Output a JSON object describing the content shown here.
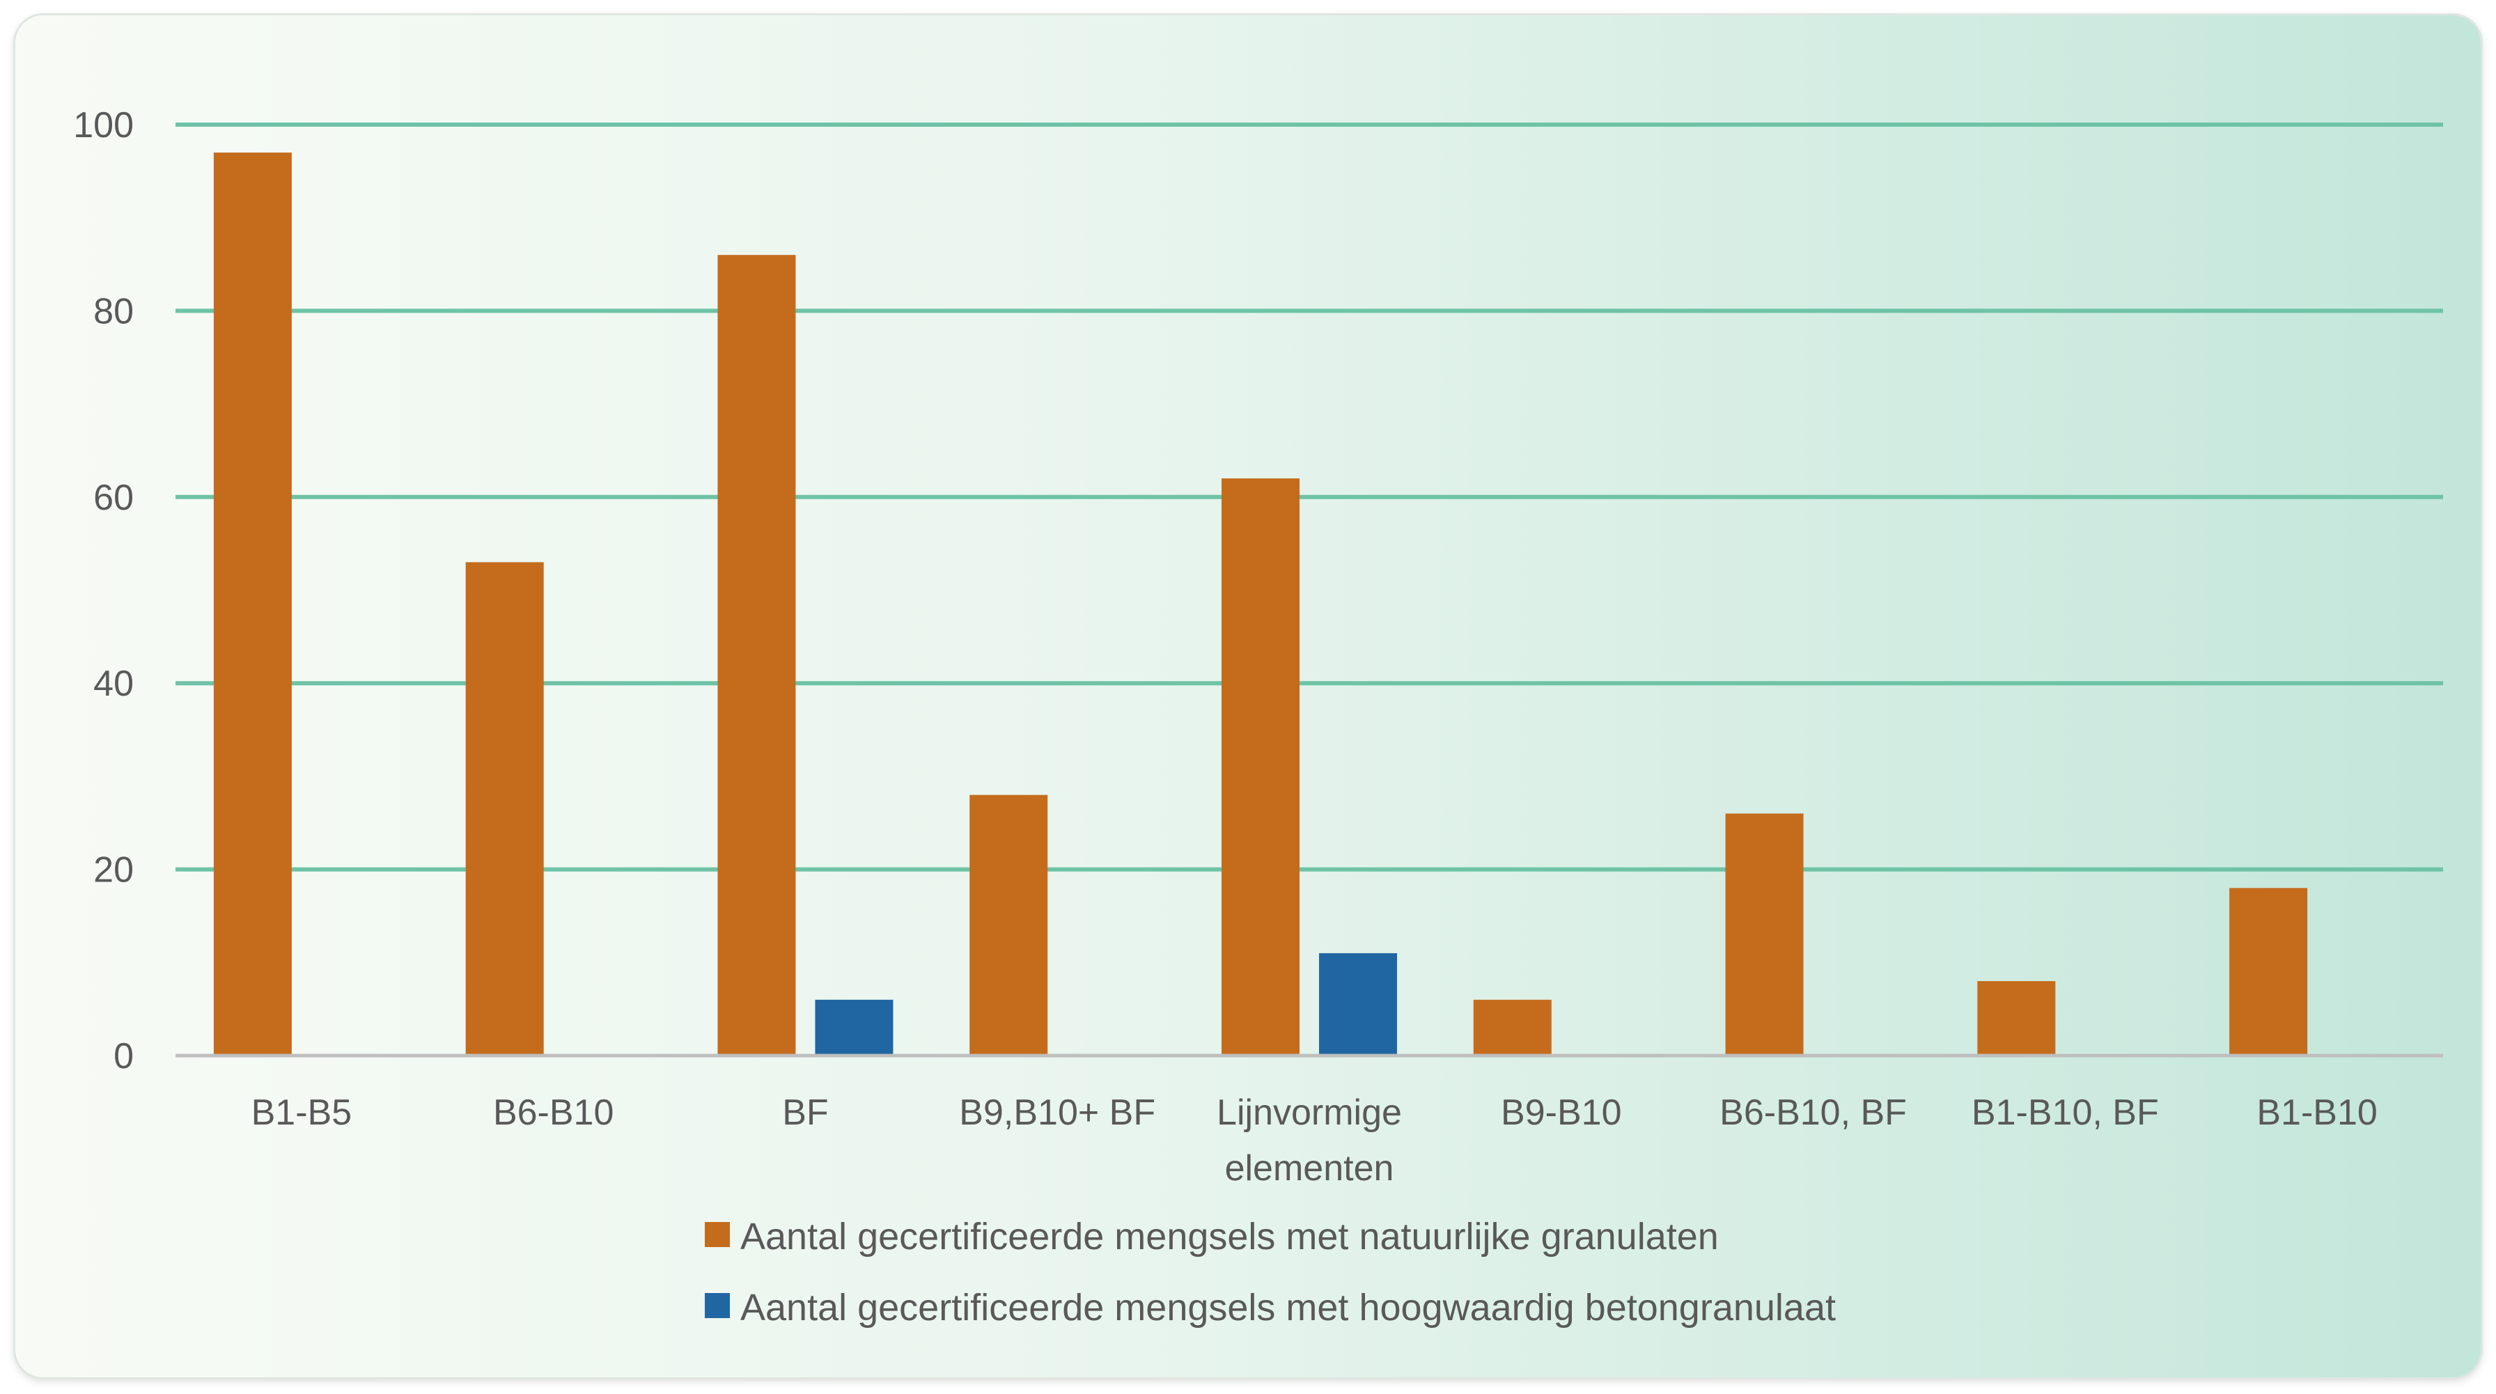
{
  "chart_data": {
    "type": "bar",
    "categories": [
      [
        "B1-B5"
      ],
      [
        "B6-B10"
      ],
      [
        "BF"
      ],
      [
        "B9,B10+ BF"
      ],
      [
        "Lijnvormige",
        "elementen"
      ],
      [
        "B9-B10"
      ],
      [
        "B6-B10, BF"
      ],
      [
        "B1-B10, BF"
      ],
      [
        "B1-B10"
      ]
    ],
    "series": [
      {
        "name": "Aantal gecertificeerde mengsels met natuurlijke granulaten",
        "color": "#c46c1c",
        "values": [
          97,
          53,
          86,
          28,
          62,
          6,
          26,
          8,
          18
        ]
      },
      {
        "name": "Aantal gecertificeerde mengsels met hoogwaardig betongranulaat",
        "color": "#2066a2",
        "values": [
          0,
          0,
          6,
          0,
          11,
          0,
          0,
          0,
          0
        ]
      }
    ],
    "yticks": [
      0,
      20,
      40,
      60,
      80,
      100
    ],
    "ylim": [
      0,
      100
    ],
    "grid": true,
    "grid_color": "#6ec3a6",
    "legend_position": "bottom"
  }
}
